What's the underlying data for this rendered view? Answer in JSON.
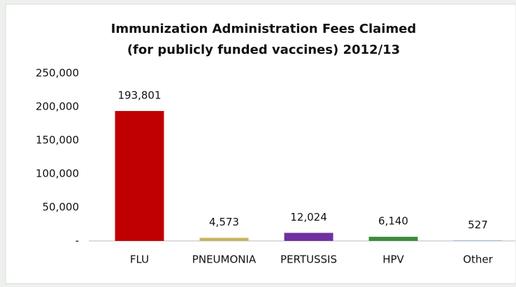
{
  "chart_data": {
    "type": "bar",
    "title": [
      "Immunization Administration Fees Claimed",
      "(for publicly funded vaccines) 2012/13"
    ],
    "categories": [
      "FLU",
      "PNEUMONIA",
      "PERTUSSIS",
      "HPV",
      "Other"
    ],
    "values": [
      193801,
      4573,
      12024,
      6140,
      527
    ],
    "value_labels": [
      "193,801",
      "4,573",
      "12,024",
      "6,140",
      "527"
    ],
    "colors": [
      "#c00000",
      "#c8b45a",
      "#7030a0",
      "#3d8b3d",
      "#4f81bd"
    ],
    "ylim": [
      0,
      250000
    ],
    "yticks": [
      {
        "value": 0,
        "label": "-"
      },
      {
        "value": 50000,
        "label": "50,000"
      },
      {
        "value": 100000,
        "label": "100,000"
      },
      {
        "value": 150000,
        "label": "150,000"
      },
      {
        "value": 200000,
        "label": "200,000"
      },
      {
        "value": 250000,
        "label": "250,000"
      }
    ],
    "grid": false
  }
}
